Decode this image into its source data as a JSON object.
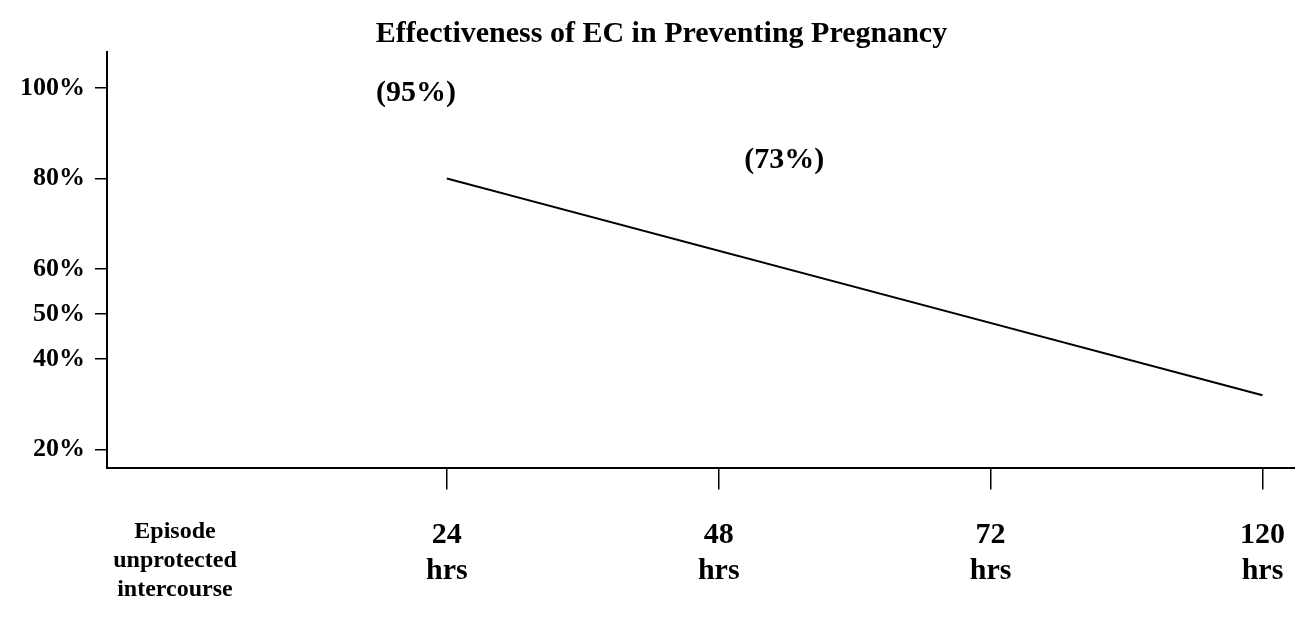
{
  "chart_data": {
    "type": "line",
    "title": "Effectiveness of EC in Preventing Pregnancy",
    "categories": [
      "Episode\nunprotected\nintercourse",
      "24\nhrs",
      "48\nhrs",
      "72\nhrs",
      "120\nhrs"
    ],
    "series": [
      {
        "color": "#000000",
        "values": [
          null,
          80,
          null,
          null,
          32
        ]
      }
    ],
    "ylim": [
      16,
      108
    ],
    "yticks": [
      {
        "value": 20,
        "label": "20%"
      },
      {
        "value": 40,
        "label": "40%"
      },
      {
        "value": 50,
        "label": "50%"
      },
      {
        "value": 60,
        "label": "60%"
      },
      {
        "value": 80,
        "label": "80%"
      },
      {
        "value": 100,
        "label": "100%"
      }
    ],
    "annotations": [
      "(95%)",
      "(73%)"
    ],
    "grid": false,
    "legend": false,
    "marker": "none",
    "line_style": "solid"
  }
}
